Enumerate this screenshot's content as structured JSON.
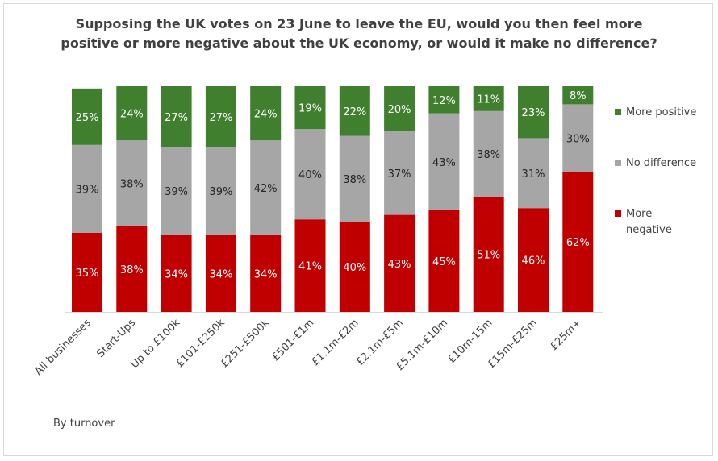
{
  "chart_data": {
    "type": "bar",
    "stacked": true,
    "percent": true,
    "title": "Supposing the UK votes on 23 June to leave the EU, would you then feel more positive or more negative about the UK economy, or would it make no difference?",
    "categories": [
      "All businesses",
      "Start-Ups",
      "Up to £100k",
      "£101-£250k",
      "£251-£500k",
      "£501-£1m",
      "£1.1m-£2m",
      "£2.1m-£5m",
      "£5.1m-£10m",
      "£10m-15m",
      "£15m-£25m",
      "£25m+"
    ],
    "series": [
      {
        "name": "More negative",
        "color": "#c00000",
        "values": [
          35,
          38,
          34,
          34,
          34,
          41,
          40,
          43,
          45,
          51,
          46,
          62
        ]
      },
      {
        "name": "No difference",
        "color": "#a6a6a6",
        "values": [
          39,
          38,
          39,
          39,
          42,
          40,
          38,
          37,
          43,
          38,
          31,
          30
        ]
      },
      {
        "name": "More positive",
        "color": "#3f7f2e",
        "values": [
          25,
          24,
          27,
          27,
          24,
          19,
          22,
          20,
          12,
          11,
          23,
          8
        ]
      }
    ],
    "legend_position": "right",
    "grid": false,
    "footnote": "By turnover"
  }
}
